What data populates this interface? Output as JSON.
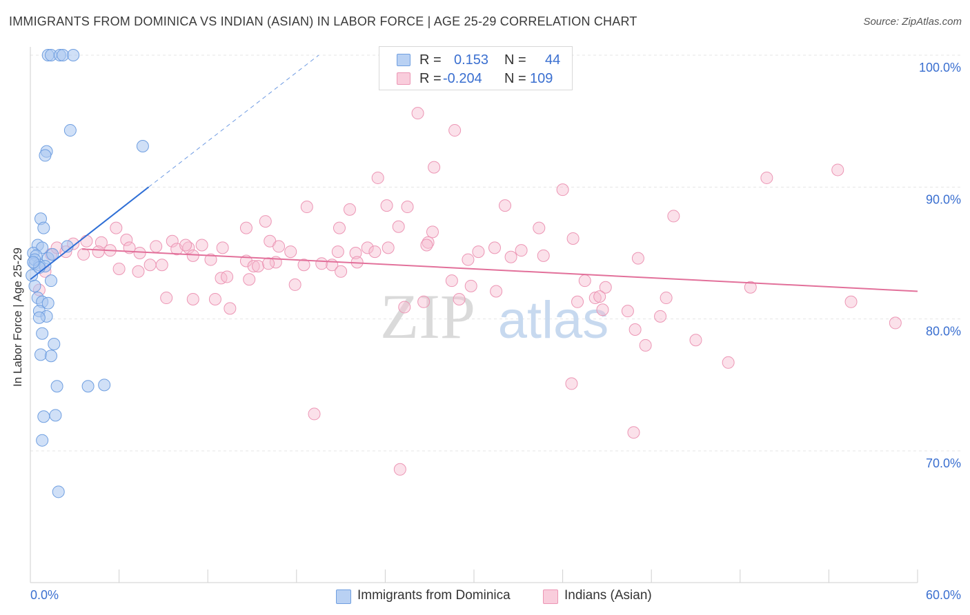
{
  "title": "IMMIGRANTS FROM DOMINICA VS INDIAN (ASIAN) IN LABOR FORCE | AGE 25-29 CORRELATION CHART",
  "source": "Source: ZipAtlas.com",
  "stats": {
    "r_label": "R =",
    "n_label": "N =",
    "blue": {
      "r": "0.153",
      "n": "44"
    },
    "pink": {
      "r": "-0.204",
      "n": "109"
    }
  },
  "watermark": {
    "zip": "ZIP",
    "atlas": "atlas"
  },
  "colors": {
    "blue_fill": "#a9c6f0",
    "blue_stroke": "#6e9ee0",
    "blue_line": "#2f6fd6",
    "pink_fill": "#f6bcd0",
    "pink_stroke": "#ec95b4",
    "pink_line": "#e2709a",
    "axis_text": "#3a6fd0"
  },
  "chart_data": {
    "type": "scatter",
    "title": "IMMIGRANTS FROM DOMINICA VS INDIAN (ASIAN) IN LABOR FORCE | AGE 25-29 CORRELATION CHART",
    "xlabel": "",
    "ylabel": "In Labor Force | Age 25-29",
    "xlim": [
      0,
      60
    ],
    "ylim": [
      60,
      100
    ],
    "x_tick_labels": [
      "0.0%",
      "60.0%"
    ],
    "y_ticks": [
      70,
      80,
      90,
      100
    ],
    "y_tick_labels": [
      "70.0%",
      "80.0%",
      "90.0%",
      "100.0%"
    ],
    "grid": true,
    "legend": [
      "Immigrants from Dominica",
      "Indians (Asian)"
    ],
    "series": [
      {
        "name": "Immigrants from Dominica",
        "color": "blue",
        "trend": {
          "x": [
            0,
            8
          ],
          "y": [
            83.0,
            90.0
          ],
          "dashed_to": [
            19.5,
            100.0
          ]
        },
        "points": [
          [
            1.2,
            100
          ],
          [
            1.4,
            100
          ],
          [
            2.0,
            100
          ],
          [
            2.2,
            100
          ],
          [
            2.9,
            100
          ],
          [
            2.7,
            94.3
          ],
          [
            1.1,
            92.7
          ],
          [
            1.0,
            92.4
          ],
          [
            7.6,
            93.1
          ],
          [
            0.7,
            87.6
          ],
          [
            0.9,
            86.9
          ],
          [
            0.5,
            85.6
          ],
          [
            0.8,
            85.4
          ],
          [
            0.2,
            85.0
          ],
          [
            0.4,
            84.8
          ],
          [
            1.2,
            84.6
          ],
          [
            0.3,
            84.2
          ],
          [
            0.6,
            84.1
          ],
          [
            1.0,
            84.0
          ],
          [
            0.1,
            83.3
          ],
          [
            1.4,
            82.9
          ],
          [
            0.3,
            82.5
          ],
          [
            0.5,
            81.6
          ],
          [
            0.8,
            81.3
          ],
          [
            1.2,
            81.2
          ],
          [
            0.6,
            80.6
          ],
          [
            1.1,
            80.2
          ],
          [
            0.6,
            80.1
          ],
          [
            0.8,
            78.9
          ],
          [
            1.6,
            78.1
          ],
          [
            0.7,
            77.3
          ],
          [
            1.4,
            77.2
          ],
          [
            1.8,
            74.9
          ],
          [
            3.9,
            74.9
          ],
          [
            5.0,
            75.0
          ],
          [
            0.9,
            72.6
          ],
          [
            1.7,
            72.7
          ],
          [
            0.8,
            70.8
          ],
          [
            1.9,
            66.9
          ],
          [
            0.3,
            84.5
          ],
          [
            0.6,
            83.9
          ],
          [
            2.5,
            85.5
          ],
          [
            1.5,
            84.9
          ],
          [
            0.2,
            84.3
          ]
        ]
      },
      {
        "name": "Indians (Asian)",
        "color": "pink",
        "trend": {
          "x": [
            3.5,
            60
          ],
          "y": [
            85.3,
            82.1
          ]
        },
        "points": [
          [
            26.2,
            95.6
          ],
          [
            28.7,
            94.3
          ],
          [
            27.3,
            91.5
          ],
          [
            23.5,
            90.7
          ],
          [
            36.0,
            89.8
          ],
          [
            49.8,
            90.7
          ],
          [
            54.6,
            91.3
          ],
          [
            18.7,
            88.5
          ],
          [
            21.6,
            88.3
          ],
          [
            24.1,
            88.6
          ],
          [
            25.5,
            88.5
          ],
          [
            32.1,
            88.6
          ],
          [
            43.5,
            87.8
          ],
          [
            15.9,
            87.4
          ],
          [
            14.6,
            86.9
          ],
          [
            20.9,
            86.9
          ],
          [
            24.9,
            87.0
          ],
          [
            27.2,
            86.6
          ],
          [
            34.4,
            86.9
          ],
          [
            5.8,
            86.9
          ],
          [
            36.7,
            86.1
          ],
          [
            26.9,
            85.8
          ],
          [
            16.2,
            85.9
          ],
          [
            16.8,
            85.5
          ],
          [
            6.5,
            86.0
          ],
          [
            9.6,
            85.9
          ],
          [
            3.8,
            85.9
          ],
          [
            4.8,
            85.8
          ],
          [
            8.5,
            85.5
          ],
          [
            11.6,
            85.6
          ],
          [
            13.0,
            85.4
          ],
          [
            9.9,
            85.3
          ],
          [
            10.7,
            85.4
          ],
          [
            7.4,
            85.0
          ],
          [
            4.6,
            85.1
          ],
          [
            5.4,
            85.2
          ],
          [
            17.6,
            85.1
          ],
          [
            20.8,
            85.1
          ],
          [
            22.0,
            85.0
          ],
          [
            22.8,
            85.4
          ],
          [
            24.2,
            85.4
          ],
          [
            30.3,
            85.1
          ],
          [
            31.4,
            85.4
          ],
          [
            11.0,
            84.8
          ],
          [
            12.2,
            84.5
          ],
          [
            14.6,
            84.4
          ],
          [
            16.6,
            84.3
          ],
          [
            18.5,
            84.1
          ],
          [
            19.7,
            84.2
          ],
          [
            20.4,
            84.1
          ],
          [
            21.0,
            83.6
          ],
          [
            22.1,
            84.3
          ],
          [
            15.1,
            84.0
          ],
          [
            15.4,
            84.0
          ],
          [
            16.1,
            84.2
          ],
          [
            8.1,
            84.1
          ],
          [
            8.9,
            84.1
          ],
          [
            6.0,
            83.8
          ],
          [
            7.3,
            83.6
          ],
          [
            29.6,
            84.5
          ],
          [
            32.5,
            84.7
          ],
          [
            34.7,
            84.8
          ],
          [
            41.1,
            84.6
          ],
          [
            12.9,
            83.1
          ],
          [
            13.3,
            83.2
          ],
          [
            14.8,
            83.0
          ],
          [
            17.9,
            82.6
          ],
          [
            28.5,
            82.9
          ],
          [
            29.8,
            82.5
          ],
          [
            31.5,
            82.1
          ],
          [
            37.5,
            82.9
          ],
          [
            38.9,
            82.4
          ],
          [
            48.7,
            82.4
          ],
          [
            9.2,
            81.6
          ],
          [
            11.0,
            81.5
          ],
          [
            12.5,
            81.5
          ],
          [
            13.5,
            80.8
          ],
          [
            25.3,
            80.9
          ],
          [
            26.6,
            81.3
          ],
          [
            29.0,
            81.5
          ],
          [
            37.0,
            81.3
          ],
          [
            38.2,
            81.6
          ],
          [
            38.5,
            81.7
          ],
          [
            43.0,
            81.6
          ],
          [
            55.5,
            81.3
          ],
          [
            38.7,
            80.7
          ],
          [
            40.4,
            80.6
          ],
          [
            42.6,
            80.2
          ],
          [
            58.5,
            79.7
          ],
          [
            40.9,
            79.2
          ],
          [
            45.0,
            78.4
          ],
          [
            41.6,
            78.0
          ],
          [
            47.2,
            76.7
          ],
          [
            36.6,
            75.1
          ],
          [
            19.2,
            72.8
          ],
          [
            40.8,
            71.4
          ],
          [
            25.0,
            68.6
          ],
          [
            1.4,
            84.9
          ],
          [
            1.0,
            83.6
          ],
          [
            0.6,
            82.2
          ],
          [
            1.8,
            85.4
          ],
          [
            2.9,
            85.7
          ],
          [
            3.6,
            84.9
          ],
          [
            2.4,
            85.1
          ],
          [
            6.7,
            85.4
          ],
          [
            10.5,
            85.6
          ],
          [
            23.3,
            85.1
          ],
          [
            26.8,
            85.6
          ],
          [
            33.2,
            85.2
          ]
        ]
      }
    ]
  }
}
